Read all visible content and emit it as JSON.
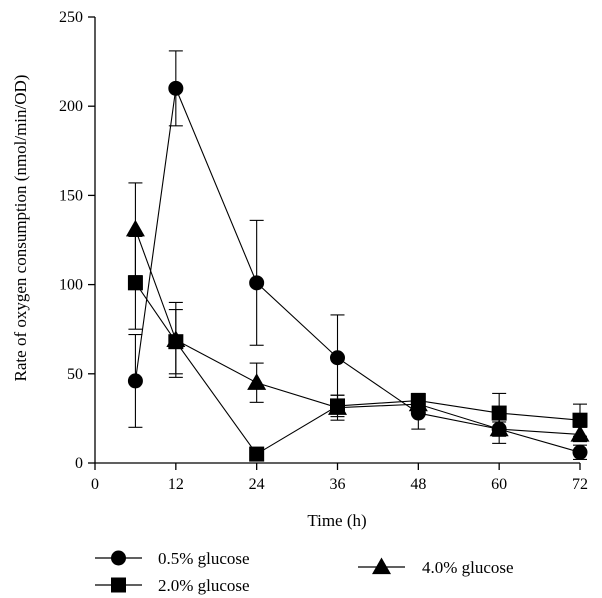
{
  "chart_data": {
    "type": "line",
    "title": "",
    "xlabel": "Time (h)",
    "ylabel": "Rate of oxygen consumption (nmol/min/OD)",
    "x_ticks": [
      "0",
      "12",
      "24",
      "36",
      "48",
      "60",
      "72"
    ],
    "y_ticks": [
      "0",
      "50",
      "100",
      "150",
      "200",
      "250"
    ],
    "xlim": [
      0,
      72
    ],
    "ylim": [
      0,
      250
    ],
    "grid": false,
    "legend_position": "bottom",
    "series": [
      {
        "name": "0.5% glucose",
        "marker": "circle",
        "x": [
          6,
          12,
          24,
          36,
          48,
          60,
          72
        ],
        "y": [
          46,
          210,
          101,
          59,
          28,
          19,
          6
        ],
        "err": [
          26,
          21,
          35,
          24,
          9,
          8,
          4
        ]
      },
      {
        "name": "2.0% glucose",
        "marker": "square",
        "x": [
          6,
          12,
          24,
          36,
          48,
          60,
          72
        ],
        "y": [
          101,
          68,
          5,
          32,
          35,
          28,
          24
        ],
        "err": [
          26,
          18,
          0,
          6,
          4,
          11,
          9
        ]
      },
      {
        "name": "4.0% glucose",
        "marker": "triangle",
        "x": [
          6,
          12,
          24,
          36,
          48,
          60,
          72
        ],
        "y": [
          131,
          69,
          45,
          31,
          33,
          19,
          16
        ],
        "err": [
          26,
          21,
          11,
          7,
          3,
          4,
          4
        ]
      }
    ]
  }
}
